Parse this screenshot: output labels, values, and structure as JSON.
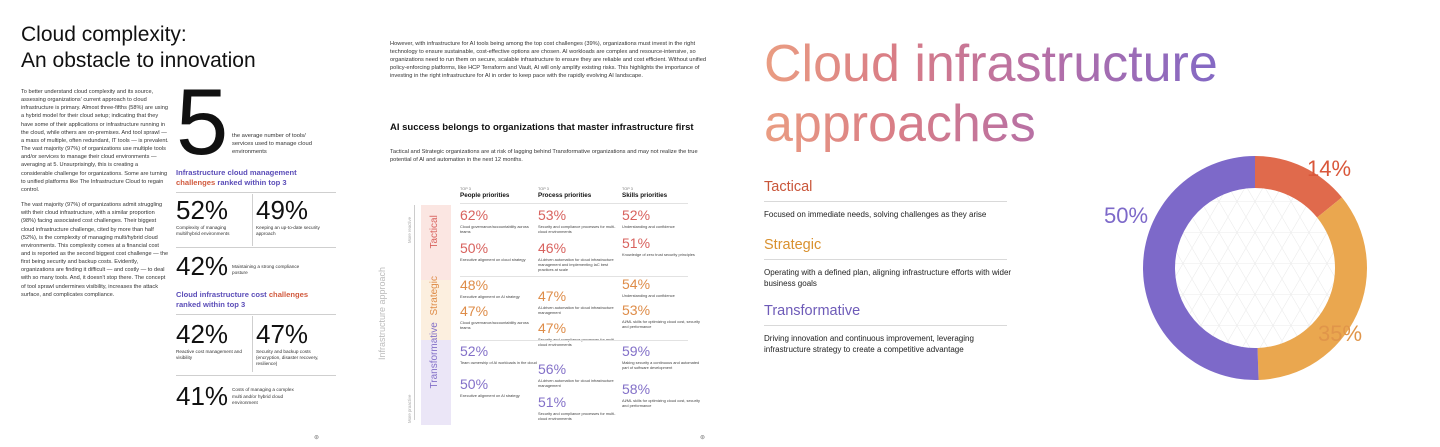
{
  "page1": {
    "title_line1": "Cloud complexity:",
    "title_line2": "An obstacle to innovation",
    "body_p1": "To better understand cloud complexity and its source, assessing organizations' current approach to cloud infrastructure is primary. Almost three-fifths (58%) are using a hybrid model for their cloud setup; indicating that they have some of their applications or infrastructure running in the cloud, while others are on-premises. And tool sprawl — a mass of multiple, often redundant, IT tools — is prevalent. The vast majority (97%) of organizations use multiple tools and/or services to manage their cloud environments — averaging at 5. Unsurprisingly, this is creating a considerable challenge for organizations. Some are turning to unified platforms like The Infrastructure Cloud to regain control.",
    "body_p2": "The vast majority (97%) of organizations admit struggling with their cloud infrastructure, with a similar proportion (98%) facing associated cost challenges. Their biggest cloud infrastructure challenge, cited by more than half (52%), is the complexity of managing multi/hybrid cloud environments. This complexity comes at a financial cost and is reported as the second biggest cost challenge — the first being security and backup costs. Evidently, organizations are finding it difficult — and costly — to deal with so many tools. And, it doesn't stop there. The concept of tool sprawl undermines visibility, increases the attack surface, and complicates compliance.",
    "big_number": "5",
    "big_number_text": "the average number of tools/ services used to manage cloud environments",
    "section1_line1_a": "Infrastructure cloud management",
    "section1_line2_a": "challenges",
    "section1_line2_b": " ranked within top 3",
    "stats1": [
      {
        "pct": "52%",
        "label": "Complexity of managing multi/hybrid environments"
      },
      {
        "pct": "49%",
        "label": "Keeping an up-to-date security approach"
      },
      {
        "pct": "42%",
        "label": "Maintaining a strong compliance posture"
      }
    ],
    "section2_line1_a": "Cloud infrastructure cost ",
    "section2_line1_b": "challenges",
    "section2_line2": "ranked within top 3",
    "stats2": [
      {
        "pct": "42%",
        "label": "Reactive cost management and visibility"
      },
      {
        "pct": "47%",
        "label": "Security and backup costs (encryption, disaster recovery, resilience)"
      },
      {
        "pct": "41%",
        "label": "Costs of managing a complex multi and/or hybrid cloud environment"
      }
    ],
    "footer_mark": "⊛"
  },
  "page2": {
    "intro": "However, with infrastructure for AI tools being among the top cost challenges (39%), organizations must invest in the right technology to ensure sustainable, cost-effective options are chosen. AI workloads are complex and resource-intensive, so organizations need to run them on secure, scalable infrastructure to ensure they are reliable and cost efficient. Without unified policy-enforcing platforms, like HCP Terraform and Vault, AI will only amplify existing risks. This highlights the importance of investing in the right infrastructure for AI in order to keep pace with the rapidly evolving AI landscape.",
    "heading": "AI success belongs to organizations that master infrastructure first",
    "subtext": "Tactical and Strategic organizations are at risk of lagging behind Transformative organizations and may not realize the true potential of AI and automation in the next 12 months.",
    "axis_title": "Infrastructure approach",
    "axis_top": "More reactive",
    "axis_bottom": "More proactive",
    "top_label": "TOP 3",
    "columns": [
      "People priorities",
      "Process priorities",
      "Skills priorities"
    ],
    "bands": [
      "Tactical",
      "Strategic",
      "Transformative"
    ],
    "band_colors": [
      "#d8625e",
      "#de8c48",
      "#8370c8"
    ],
    "grid": {
      "tactical": {
        "people": [
          {
            "v": "62%",
            "d": "Cloud governance/accountability across teams"
          },
          {
            "v": "50%",
            "d": "Executive alignment on cloud strategy"
          }
        ],
        "process": [
          {
            "v": "53%",
            "d": "Security and compliance processes for multi-cloud environments"
          },
          {
            "v": "46%",
            "d": "AI-driven automation for cloud infrastructure management and implementing IaC best practices at scale"
          }
        ],
        "skills": [
          {
            "v": "52%",
            "d": "Understanding and confidence"
          },
          {
            "v": "51%",
            "d": "Knowledge of zero trust security principles"
          }
        ]
      },
      "strategic": {
        "people": [
          {
            "v": "48%",
            "d": "Executive alignment on AI strategy"
          },
          {
            "v": "47%",
            "d": "Cloud governance/accountability across teams"
          }
        ],
        "process": [
          {
            "v": "47%",
            "d": "AI-driven automation for cloud infrastructure management"
          },
          {
            "v": "47%",
            "d": "Security and compliance processes for multi-cloud environments"
          }
        ],
        "skills": [
          {
            "v": "54%",
            "d": "Understanding and confidence"
          },
          {
            "v": "53%",
            "d": "AI/ML skills for optimizing cloud cost, security and performance"
          }
        ]
      },
      "transformative": {
        "people": [
          {
            "v": "52%",
            "d": "Team ownership of AI workloads in the cloud"
          },
          {
            "v": "50%",
            "d": "Executive alignment on AI strategy"
          }
        ],
        "process": [
          {
            "v": "56%",
            "d": "AI-driven automation for cloud infrastructure management"
          },
          {
            "v": "51%",
            "d": "Security and compliance processes for multi-cloud environments"
          }
        ],
        "skills": [
          {
            "v": "59%",
            "d": "Making security a continuous and automated part of software development"
          },
          {
            "v": "58%",
            "d": "AI/ML skills for optimizing cloud cost, security and performance"
          }
        ]
      }
    },
    "footer_mark": "⊛"
  },
  "page3": {
    "title_line1": "Cloud infrastructure",
    "title_line2": "approaches",
    "approaches": [
      {
        "name": "Tactical",
        "desc": "Focused on immediate needs, solving challenges as they arise",
        "color": "#c9563a"
      },
      {
        "name": "Strategic",
        "desc": "Operating with a defined plan, aligning infrastructure efforts with wider business goals",
        "color": "#d9912f"
      },
      {
        "name": "Transformative",
        "desc": "Driving innovation and continuous improvement, leveraging infrastructure strategy to create a competitive advantage",
        "color": "#6e5bb8"
      }
    ],
    "labels": {
      "tactical": "14%",
      "strategic": "35%",
      "transformative": "50%"
    }
  },
  "chart_data": {
    "type": "pie",
    "categories": [
      "Tactical",
      "Strategic",
      "Transformative"
    ],
    "values": [
      14,
      35,
      50
    ],
    "colors": [
      "#e06a4c",
      "#eaa74f",
      "#7d69c9"
    ]
  }
}
